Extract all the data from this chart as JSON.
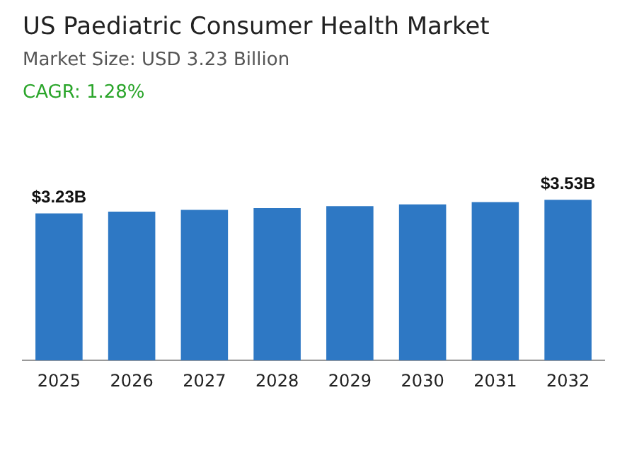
{
  "chart_data": {
    "type": "bar",
    "title": "US Paediatric Consumer Health Market",
    "subtitle": "Market Size: USD 3.23 Billion",
    "annotations": [
      "CAGR: 1.28%"
    ],
    "categories": [
      "2025",
      "2026",
      "2027",
      "2028",
      "2029",
      "2030",
      "2031",
      "2032"
    ],
    "values": [
      3.23,
      3.27,
      3.31,
      3.35,
      3.39,
      3.43,
      3.48,
      3.53
    ],
    "value_labels": [
      "$3.23B",
      null,
      null,
      null,
      null,
      null,
      null,
      "$3.53B"
    ],
    "color": "#2e78c4",
    "grid": false,
    "legend": false,
    "tick_labels": "x"
  }
}
